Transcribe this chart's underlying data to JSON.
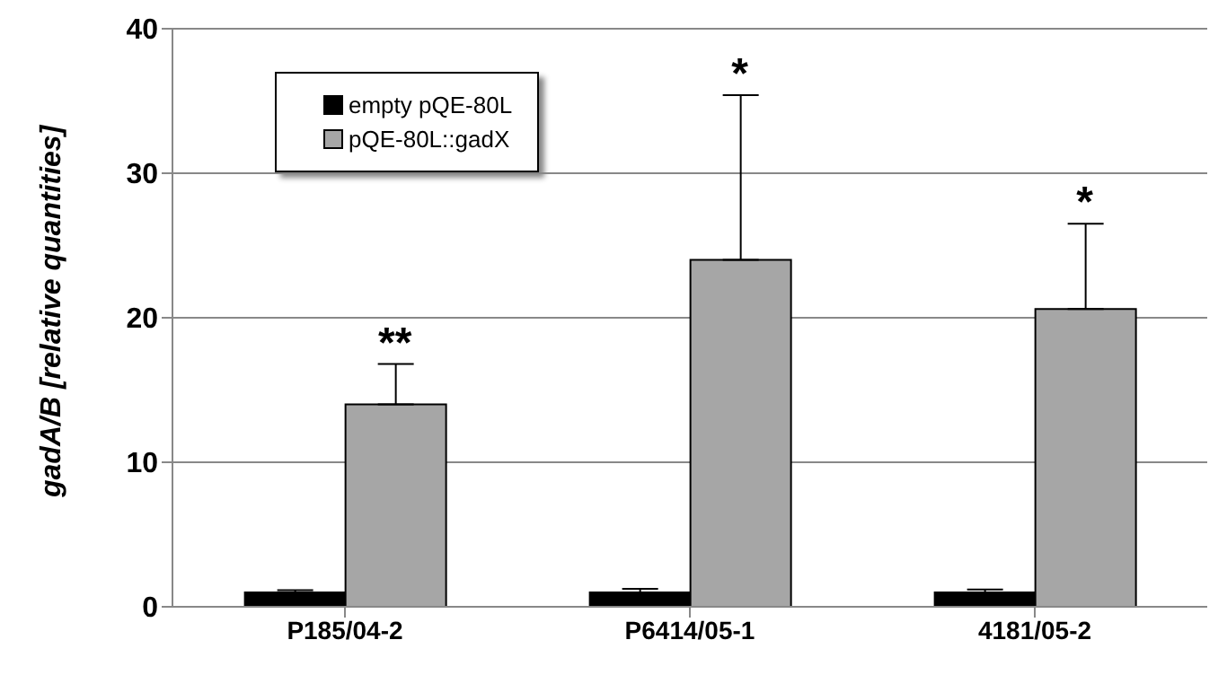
{
  "chart_data": {
    "type": "bar",
    "ylabel": "gadA/B [relative quantities]",
    "categories": [
      "P185/04-2",
      "P6414/05-1",
      "4181/05-2"
    ],
    "series": [
      {
        "name": "empty pQE-80L",
        "color": "#000000",
        "values": [
          1.0,
          1.0,
          1.0
        ],
        "errors": [
          [
            1.0,
            1.15
          ],
          [
            1.0,
            1.25
          ],
          [
            1.0,
            1.2
          ]
        ]
      },
      {
        "name": "pQE-80L::gadX",
        "color": "#a6a6a6",
        "values": [
          14.0,
          24.0,
          20.6
        ],
        "errors": [
          [
            14.0,
            16.8
          ],
          [
            24.0,
            35.4
          ],
          [
            20.6,
            26.5
          ]
        ]
      }
    ],
    "ylim": [
      0,
      40
    ],
    "yticks": [
      0,
      10,
      20,
      30,
      40
    ],
    "grid": "y",
    "legend": "top left",
    "annotations": [
      "**",
      "*",
      "*"
    ]
  }
}
